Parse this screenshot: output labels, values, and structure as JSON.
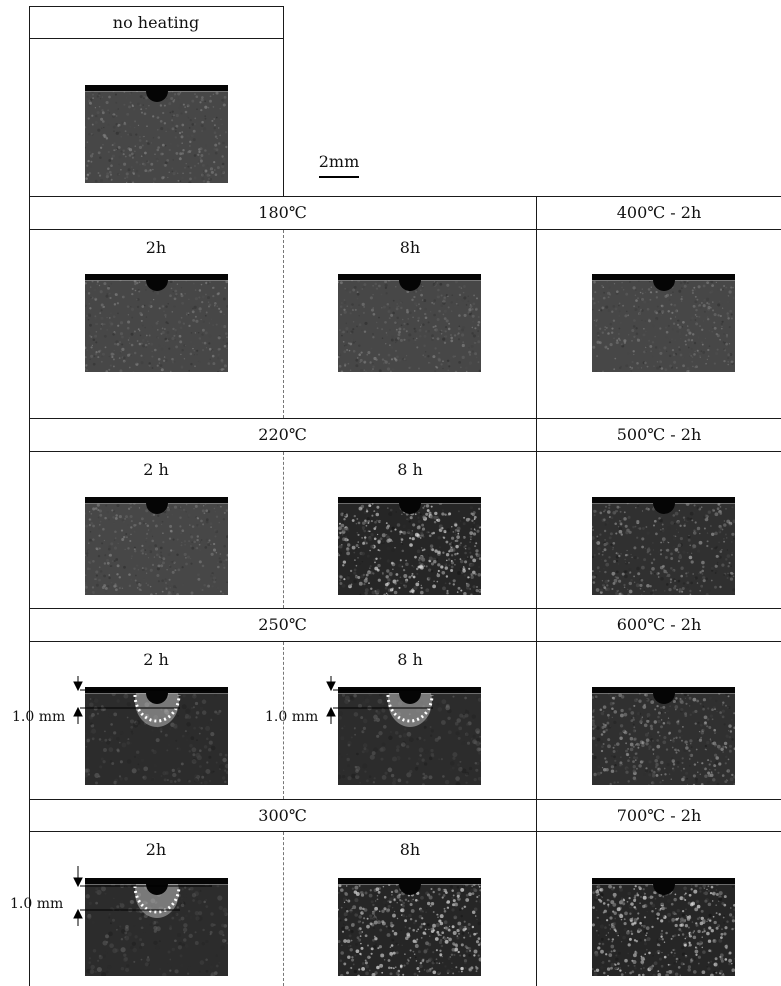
{
  "scale_bar": {
    "label": "2mm"
  },
  "reference": {
    "label": "no heating",
    "texture": "fine-gray"
  },
  "groups": [
    {
      "name": "180℃",
      "samples": [
        {
          "time": "2h",
          "texture": "fine-gray",
          "haz": false
        },
        {
          "time": "8h",
          "texture": "fine-gray",
          "haz": false
        }
      ]
    },
    {
      "name": "220℃",
      "samples": [
        {
          "time": "2 h",
          "texture": "fine-gray",
          "haz": false
        },
        {
          "time": "8 h",
          "texture": "coarse-bright",
          "haz": false
        }
      ]
    },
    {
      "name": "250℃",
      "samples": [
        {
          "time": "2 h",
          "texture": "dark-smooth",
          "haz": true,
          "dim_label": "1.0 mm"
        },
        {
          "time": "8 h",
          "texture": "dark-smooth",
          "haz": true,
          "dim_label": "1.0 mm"
        }
      ]
    },
    {
      "name": "300℃",
      "samples": [
        {
          "time": "2h",
          "texture": "dark-smooth",
          "haz": true,
          "dim_label": "1.0 mm"
        },
        {
          "time": "8h",
          "texture": "coarse-bright",
          "haz": false
        }
      ]
    }
  ],
  "high_temp": [
    {
      "label": "400℃ - 2h",
      "texture": "fine-gray"
    },
    {
      "label": "500℃ - 2h",
      "texture": "coarse"
    },
    {
      "label": "600℃ - 2h",
      "texture": "coarse"
    },
    {
      "label": "700℃ - 2h",
      "texture": "coarse-bright"
    }
  ]
}
